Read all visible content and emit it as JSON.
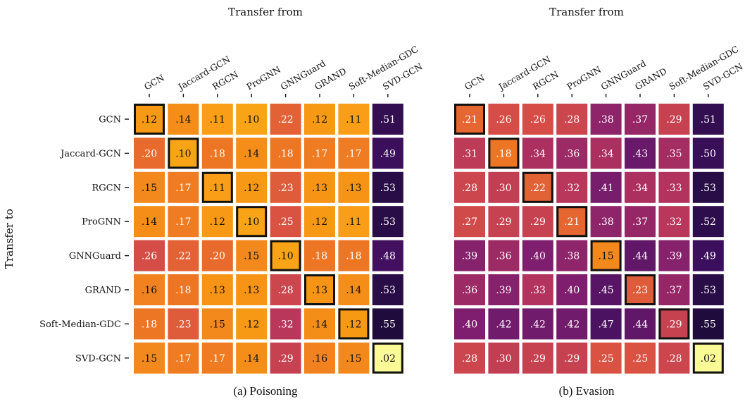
{
  "chart_data": [
    {
      "type": "heatmap",
      "caption": "(a) Poisoning",
      "xlabel": "Transfer from",
      "ylabel": "Transfer to",
      "x_categories": [
        "GCN",
        "Jaccard-GCN",
        "RGCN",
        "ProGNN",
        "GNNGuard",
        "GRAND",
        "Soft-Median-GDC",
        "SVD-GCN"
      ],
      "y_categories": [
        "GCN",
        "Jaccard-GCN",
        "RGCN",
        "ProGNN",
        "GNNGuard",
        "GRAND",
        "Soft-Median-GDC",
        "SVD-GCN"
      ],
      "values": [
        [
          0.12,
          0.14,
          0.11,
          0.1,
          0.22,
          0.12,
          0.11,
          0.51
        ],
        [
          0.2,
          0.1,
          0.18,
          0.14,
          0.18,
          0.17,
          0.17,
          0.49
        ],
        [
          0.15,
          0.17,
          0.11,
          0.12,
          0.23,
          0.13,
          0.13,
          0.53
        ],
        [
          0.14,
          0.17,
          0.12,
          0.1,
          0.25,
          0.12,
          0.11,
          0.53
        ],
        [
          0.26,
          0.22,
          0.2,
          0.15,
          0.1,
          0.18,
          0.18,
          0.48
        ],
        [
          0.16,
          0.18,
          0.13,
          0.13,
          0.28,
          0.13,
          0.14,
          0.53
        ],
        [
          0.18,
          0.23,
          0.15,
          0.12,
          0.32,
          0.14,
          0.12,
          0.55
        ],
        [
          0.15,
          0.17,
          0.17,
          0.14,
          0.29,
          0.16,
          0.15,
          0.02
        ]
      ],
      "highlight": "diagonal",
      "colormap": "inferno"
    },
    {
      "type": "heatmap",
      "caption": "(b) Evasion",
      "xlabel": "Transfer from",
      "ylabel": "",
      "x_categories": [
        "GCN",
        "Jaccard-GCN",
        "RGCN",
        "ProGNN",
        "GNNGuard",
        "GRAND",
        "Soft-Median-GDC",
        "SVD-GCN"
      ],
      "y_categories": [],
      "values": [
        [
          0.21,
          0.26,
          0.26,
          0.28,
          0.38,
          0.37,
          0.29,
          0.51
        ],
        [
          0.31,
          0.18,
          0.34,
          0.36,
          0.34,
          0.43,
          0.35,
          0.5
        ],
        [
          0.28,
          0.3,
          0.22,
          0.32,
          0.41,
          0.34,
          0.33,
          0.53
        ],
        [
          0.27,
          0.29,
          0.29,
          0.21,
          0.38,
          0.37,
          0.32,
          0.52
        ],
        [
          0.39,
          0.36,
          0.4,
          0.38,
          0.15,
          0.44,
          0.39,
          0.49
        ],
        [
          0.36,
          0.39,
          0.33,
          0.4,
          0.45,
          0.23,
          0.37,
          0.53
        ],
        [
          0.4,
          0.42,
          0.42,
          0.42,
          0.47,
          0.44,
          0.29,
          0.55
        ],
        [
          0.28,
          0.3,
          0.29,
          0.29,
          0.25,
          0.25,
          0.28,
          0.02
        ]
      ],
      "highlight": "diagonal",
      "colormap": "inferno"
    }
  ]
}
